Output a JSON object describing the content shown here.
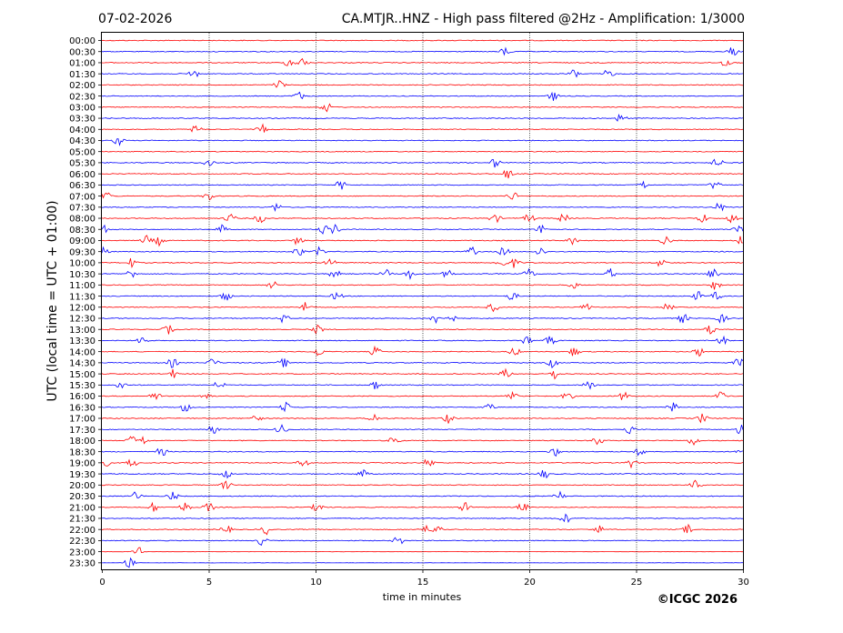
{
  "header": {
    "date": "07-02-2026",
    "title": "CA.MTJR..HNZ - High pass filtered @2Hz - Amplification: 1/3000"
  },
  "footer": {
    "copyright": "©ICGC 2026"
  },
  "colors": {
    "odd_rows": "#ff0000",
    "even_rows": "#0000ff",
    "grid": "#000000"
  },
  "chart_data": {
    "type": "line",
    "title": "CA.MTJR..HNZ - High pass filtered @2Hz - Amplification: 1/3000",
    "xlabel": "time in minutes",
    "ylabel": "UTC (local time = UTC + 01:00)",
    "xlim": [
      0,
      30
    ],
    "xticks": [
      0,
      5,
      10,
      15,
      20,
      25,
      30
    ],
    "vertical_grid_minutes": [
      5,
      10,
      15,
      20,
      25
    ],
    "grid": true,
    "row_labels": [
      "00:00",
      "00:30",
      "01:00",
      "01:30",
      "02:00",
      "02:30",
      "03:00",
      "03:30",
      "04:00",
      "04:30",
      "05:00",
      "05:30",
      "06:00",
      "06:30",
      "07:00",
      "07:30",
      "08:00",
      "08:30",
      "09:00",
      "09:30",
      "10:00",
      "10:30",
      "11:00",
      "11:30",
      "12:00",
      "12:30",
      "13:00",
      "13:30",
      "14:00",
      "14:30",
      "15:00",
      "15:30",
      "16:00",
      "16:30",
      "17:00",
      "17:30",
      "18:00",
      "18:30",
      "19:00",
      "19:30",
      "20:00",
      "20:30",
      "21:00",
      "21:30",
      "22:00",
      "22:30",
      "23:00",
      "23:30"
    ],
    "event_minutes": [
      [],
      [
        18.9,
        29.5
      ],
      [
        8.8,
        9.4,
        29.2
      ],
      [
        4.3,
        22.1,
        23.7
      ],
      [
        8.3
      ],
      [
        9.2,
        21.1
      ],
      [
        10.5
      ],
      [
        24.3
      ],
      [
        4.4,
        7.5
      ],
      [
        0.8
      ],
      [],
      [
        5.0,
        18.4,
        28.8
      ],
      [
        19.0
      ],
      [
        11.2,
        25.3,
        28.7
      ],
      [
        0.2,
        5.0,
        19.2
      ],
      [
        8.2,
        28.9
      ],
      [
        6.0,
        7.4,
        18.4,
        20.0,
        21.6,
        28.1,
        29.5
      ],
      [
        0.1,
        5.6,
        10.4,
        10.9,
        20.6,
        29.8
      ],
      [
        2.1,
        2.7,
        9.2,
        22.0,
        26.4,
        29.9
      ],
      [
        0.1,
        9.2,
        10.2,
        17.3,
        18.8,
        20.5
      ],
      [
        1.4,
        10.7,
        18.7,
        19.3,
        26.2
      ],
      [
        1.4,
        10.9,
        13.3,
        14.4,
        16.2,
        20.0,
        23.8,
        28.6
      ],
      [
        8.0,
        22.1,
        28.7
      ],
      [
        5.8,
        11.0,
        19.2,
        27.9,
        28.8
      ],
      [
        9.5,
        18.3,
        22.7,
        26.5
      ],
      [
        8.5,
        15.6,
        16.3,
        27.2,
        29.0
      ],
      [
        3.1,
        10.1,
        28.5
      ],
      [
        1.9,
        19.9,
        21.0,
        29.0
      ],
      [
        10.1,
        12.8,
        19.3,
        22.1,
        27.9
      ],
      [
        3.3,
        5.2,
        8.5,
        21.1,
        29.8
      ],
      [
        3.3,
        18.9,
        21.2
      ],
      [
        0.9,
        5.5,
        12.8,
        22.8
      ],
      [
        2.5,
        4.9,
        19.2,
        21.8,
        24.4,
        29.0
      ],
      [
        3.9,
        8.6,
        18.1,
        26.7
      ],
      [
        7.2,
        12.7,
        16.2,
        28.1
      ],
      [
        5.2,
        8.4,
        24.7,
        29.9
      ],
      [
        1.4,
        1.9,
        13.7,
        23.2,
        27.7
      ],
      [
        2.8,
        21.2,
        25.2,
        29.9
      ],
      [
        0.1,
        1.4,
        9.4,
        15.3,
        24.8
      ],
      [
        5.8,
        12.2,
        20.7
      ],
      [
        5.8,
        27.8
      ],
      [
        1.6,
        3.3,
        21.4
      ],
      [
        2.4,
        3.9,
        5.0,
        10.1,
        17.0,
        19.7
      ],
      [
        21.7
      ],
      [
        5.8,
        7.7,
        15.1,
        15.7,
        23.2,
        27.4
      ],
      [
        7.5,
        13.9
      ],
      [
        1.7
      ],
      [
        1.3
      ]
    ],
    "line_colors": [
      "#ff0000",
      "#0000ff"
    ]
  }
}
